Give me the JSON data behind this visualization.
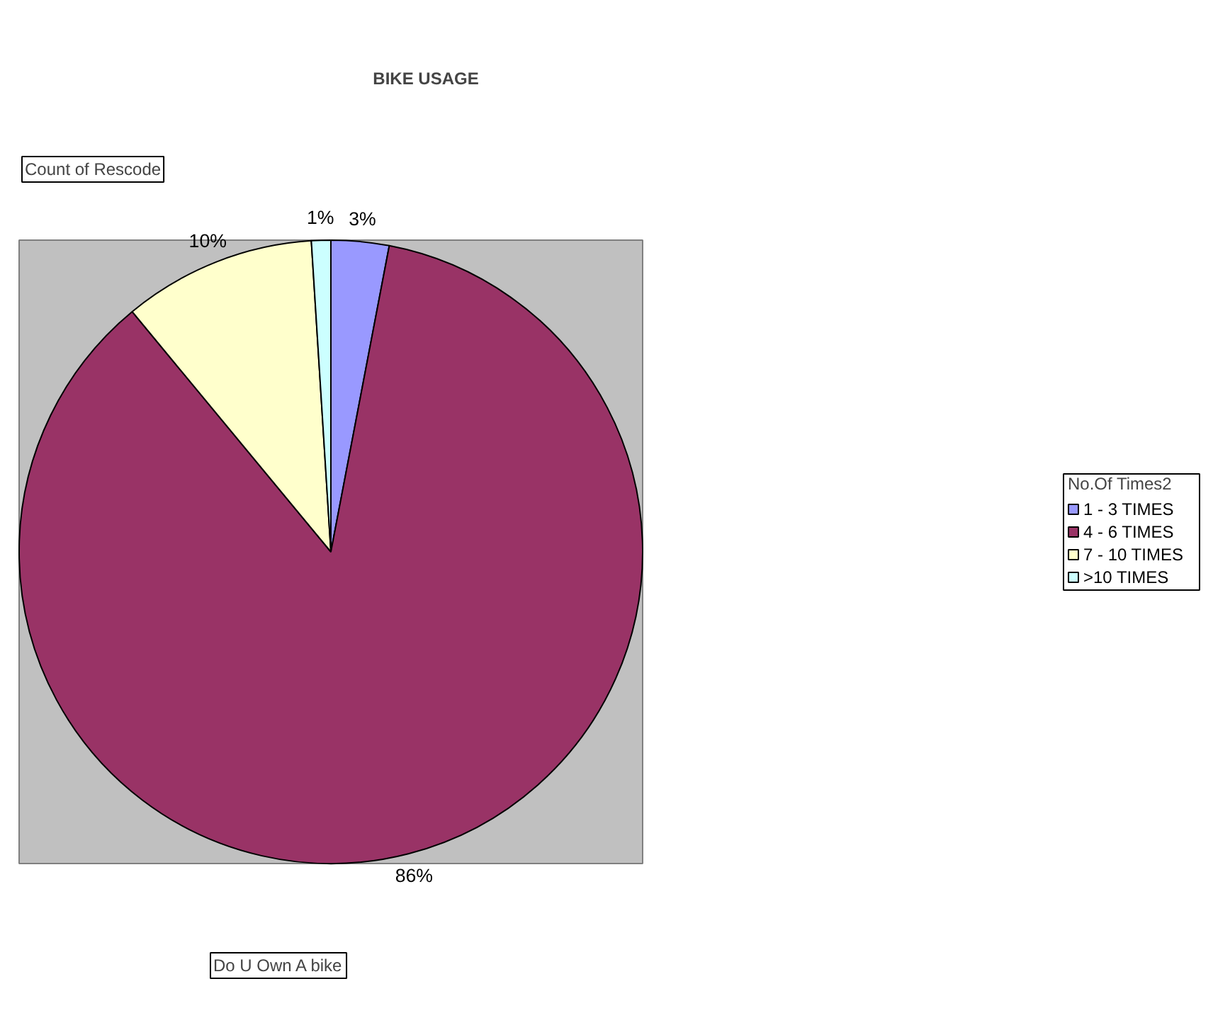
{
  "chart_data": {
    "type": "pie",
    "title": "BIKE USAGE",
    "categories": [
      "1 - 3 TIMES",
      "4 - 6 TIMES",
      "7 - 10 TIMES",
      ">10 TIMES"
    ],
    "values": [
      3,
      86,
      10,
      1
    ],
    "colors": [
      "#9999ff",
      "#993366",
      "#ffffcc",
      "#ccffff"
    ],
    "value_labels": [
      "3%",
      "86%",
      "10%",
      "1%"
    ],
    "legend_title": "No.Of Times2",
    "legend": "right",
    "annotations": [
      "Count of Rescode",
      "Do U Own A bike"
    ]
  }
}
